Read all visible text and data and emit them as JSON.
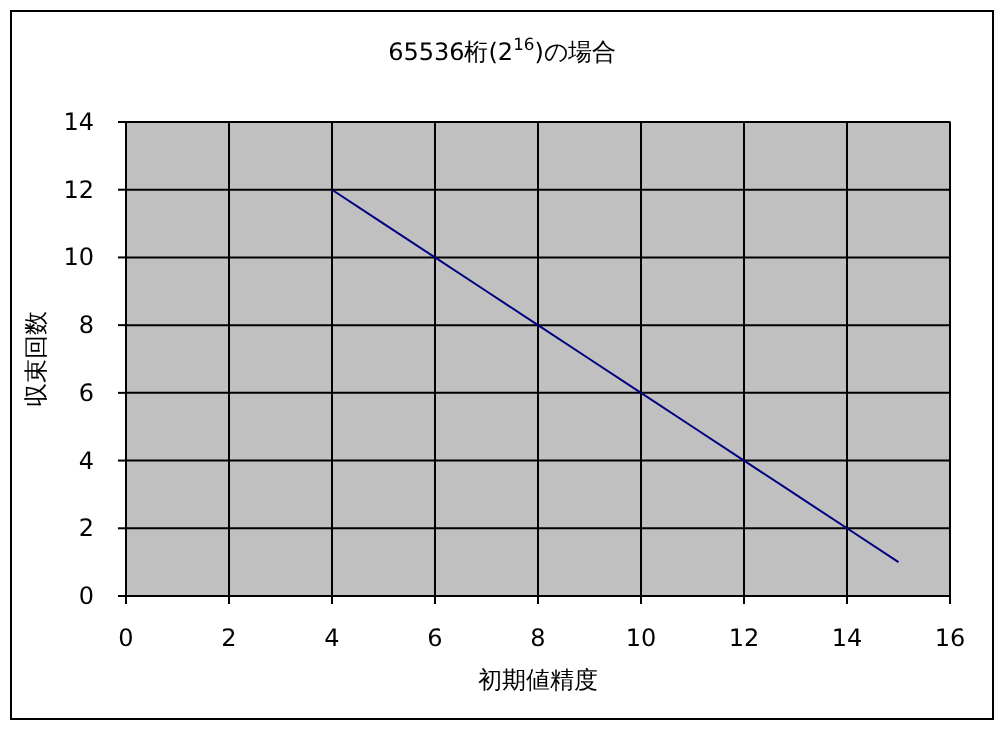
{
  "chart_data": {
    "type": "line",
    "title": "65536桁(2$^{16}$)の場合",
    "xlabel": "初期値精度",
    "ylabel": "収束回数",
    "xlim": [
      0,
      16
    ],
    "xticks": [
      0,
      2,
      4,
      6,
      8,
      10,
      12,
      14,
      16
    ],
    "ylim": [
      0,
      14
    ],
    "yticks": [
      0,
      2,
      4,
      6,
      8,
      10,
      12,
      14
    ],
    "grid": true,
    "marker": "none",
    "line_style": "solid",
    "series": [
      {
        "color": "#000080",
        "x": [
          4,
          5,
          6,
          7,
          8,
          9,
          10,
          11,
          12,
          13,
          14,
          15
        ],
        "values": [
          12,
          11,
          10,
          9,
          8,
          7,
          6,
          5,
          4,
          3,
          2,
          1
        ]
      }
    ]
  }
}
